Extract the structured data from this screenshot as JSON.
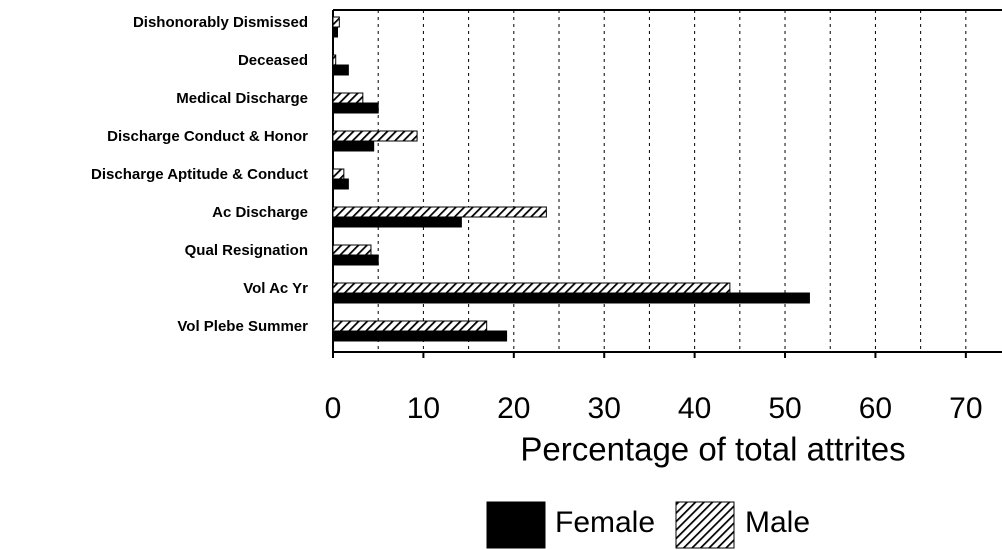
{
  "chart_data": {
    "type": "barh",
    "categories": [
      "Dishonorably Dismissed",
      "Deceased",
      "Medical Discharge",
      "Discharge Conduct & Honor",
      "Discharge Aptitude & Conduct",
      "Ac Discharge",
      "Qual Resignation",
      "Vol Ac Yr",
      "Vol Plebe Summer"
    ],
    "series": [
      {
        "name": "Female",
        "color": "#000000",
        "values": [
          0.5,
          1.7,
          5.0,
          4.5,
          1.7,
          14.2,
          5.0,
          52.7,
          19.2
        ]
      },
      {
        "name": "Male",
        "color": "#000000",
        "hatch": true,
        "values": [
          0.7,
          0.3,
          3.3,
          9.3,
          1.2,
          23.6,
          4.2,
          43.9,
          17.0
        ]
      }
    ],
    "x_label": "Percentage of total attrites",
    "xlim": [
      0,
      74
    ],
    "xticks": [
      0,
      10,
      20,
      30,
      40,
      50,
      60,
      70
    ],
    "minor_xticks": [
      5,
      15,
      25,
      35,
      45,
      55,
      65
    ],
    "grid": true,
    "legend": "bottom"
  }
}
